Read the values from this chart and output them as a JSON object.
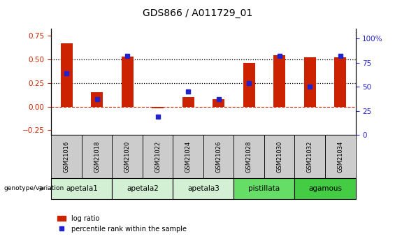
{
  "title": "GDS866 / A011729_01",
  "samples": [
    "GSM21016",
    "GSM21018",
    "GSM21020",
    "GSM21022",
    "GSM21024",
    "GSM21026",
    "GSM21028",
    "GSM21030",
    "GSM21032",
    "GSM21034"
  ],
  "log_ratio": [
    0.67,
    0.15,
    0.53,
    -0.02,
    0.1,
    0.08,
    0.46,
    0.54,
    0.52,
    0.52
  ],
  "percentile_rank": [
    64,
    37,
    82,
    19,
    45,
    37,
    54,
    82,
    50,
    82
  ],
  "bar_color": "#cc2200",
  "dot_color": "#2222cc",
  "ylim_left": [
    -0.3,
    0.82
  ],
  "ylim_right": [
    0,
    110
  ],
  "yticks_left": [
    -0.25,
    0.0,
    0.25,
    0.5,
    0.75
  ],
  "yticks_right": [
    0,
    25,
    50,
    75,
    100
  ],
  "ytick_labels_right": [
    "0",
    "25",
    "50",
    "75",
    "100%"
  ],
  "hlines": [
    0.25,
    0.5
  ],
  "zero_line_color": "#cc2200",
  "hline_color": "#000000",
  "groups": [
    {
      "label": "apetala1",
      "start": 0,
      "end": 2,
      "color": "#d4f0d4"
    },
    {
      "label": "apetala2",
      "start": 2,
      "end": 4,
      "color": "#d4f0d4"
    },
    {
      "label": "apetala3",
      "start": 4,
      "end": 6,
      "color": "#d4f0d4"
    },
    {
      "label": "pistillata",
      "start": 6,
      "end": 8,
      "color": "#66dd66"
    },
    {
      "label": "agamous",
      "start": 8,
      "end": 10,
      "color": "#44cc44"
    }
  ],
  "genotype_label": "genotype/variation",
  "legend_bar_label": "log ratio",
  "legend_dot_label": "percentile rank within the sample",
  "title_fontsize": 10,
  "tick_fontsize": 7.5,
  "bar_width": 0.4
}
